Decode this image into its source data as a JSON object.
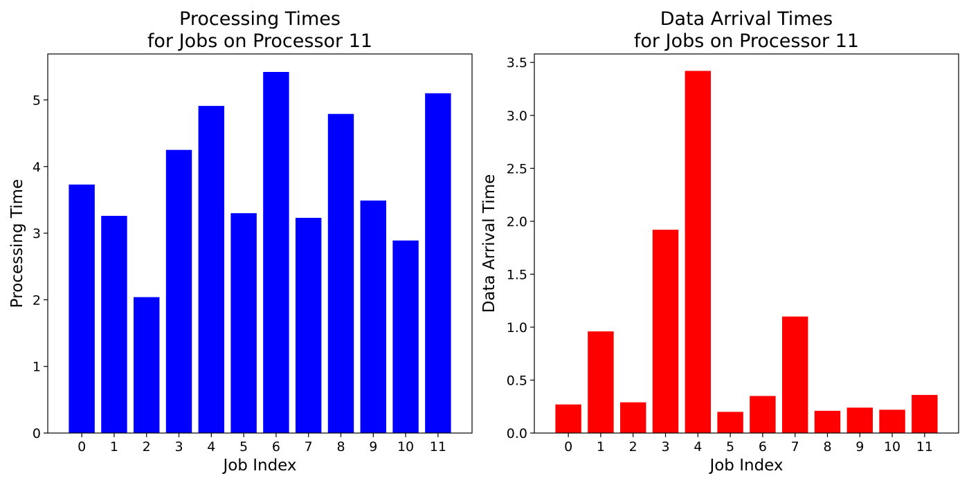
{
  "chart_data": [
    {
      "type": "bar",
      "title": [
        "Processing Times",
        "for Jobs on Processor 11"
      ],
      "xlabel": "Job Index",
      "ylabel": "Processing Time",
      "categories": [
        "0",
        "1",
        "2",
        "3",
        "4",
        "5",
        "6",
        "7",
        "8",
        "9",
        "10",
        "11"
      ],
      "values": [
        3.73,
        3.26,
        2.04,
        4.25,
        4.91,
        3.3,
        5.42,
        3.23,
        4.79,
        3.49,
        2.89,
        5.1
      ],
      "ylim": [
        0,
        5.69
      ],
      "yticks": [
        0,
        1,
        2,
        3,
        4,
        5
      ],
      "ytick_labels": [
        "0",
        "1",
        "2",
        "3",
        "4",
        "5"
      ],
      "color": "#0000ff",
      "grid": false
    },
    {
      "type": "bar",
      "title": [
        "Data Arrival Times",
        "for Jobs on Processor 11"
      ],
      "xlabel": "Job Index",
      "ylabel": "Data Arrival Time",
      "categories": [
        "0",
        "1",
        "2",
        "3",
        "4",
        "5",
        "6",
        "7",
        "8",
        "9",
        "10",
        "11"
      ],
      "values": [
        0.27,
        0.96,
        0.29,
        1.92,
        3.42,
        0.2,
        0.35,
        1.1,
        0.21,
        0.24,
        0.22,
        0.36
      ],
      "ylim": [
        0,
        3.58
      ],
      "yticks": [
        0,
        0.5,
        1,
        1.5,
        2,
        2.5,
        3,
        3.5
      ],
      "ytick_labels": [
        "0.0",
        "0.5",
        "1.0",
        "1.5",
        "2.0",
        "2.5",
        "3.0",
        "3.5"
      ],
      "color": "#ff0000",
      "grid": false
    }
  ]
}
